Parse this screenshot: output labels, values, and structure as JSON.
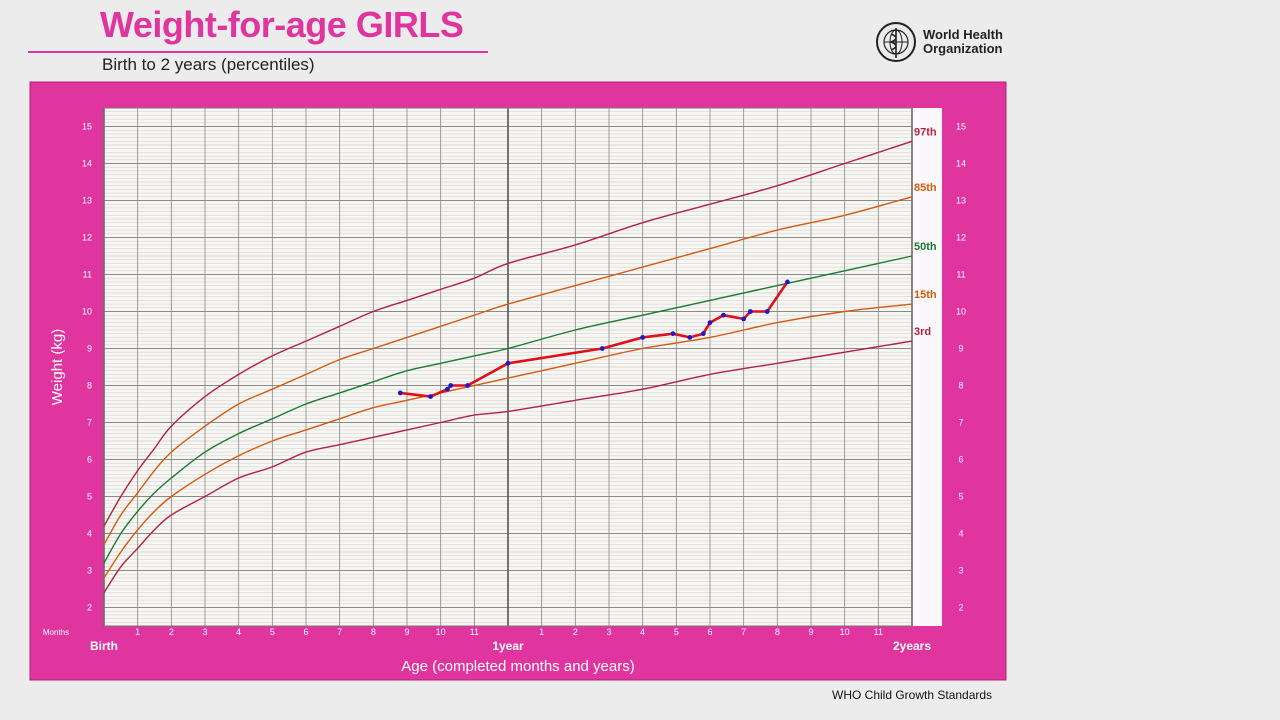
{
  "header": {
    "title": "Weight-for-age GIRLS",
    "subtitle": "Birth to 2 years (percentiles)",
    "org_name": "World Health Organization",
    "footer": "WHO Child Growth Standards"
  },
  "colors": {
    "brand_pink": "#e0349e",
    "grid_bg": "#f8f6f2",
    "p97": "#b3213f",
    "p85": "#d45a10",
    "p50": "#1a7a33",
    "p15": "#d45a10",
    "p3": "#b3213f",
    "child_line": "#e0101a",
    "child_point": "#1a1acc"
  },
  "chart_data": {
    "type": "line",
    "title": "Weight-for-age GIRLS",
    "subtitle": "Birth to 2 years (percentiles)",
    "xlabel": "Age (completed months and years)",
    "ylabel": "Weight (kg)",
    "x_unit_label": "Months",
    "xlim": [
      0,
      24
    ],
    "ylim": [
      1.5,
      15.5
    ],
    "grid": true,
    "x_ticks": [
      {
        "x": 0,
        "label": ""
      },
      {
        "x": 1,
        "label": "1"
      },
      {
        "x": 2,
        "label": "2"
      },
      {
        "x": 3,
        "label": "3"
      },
      {
        "x": 4,
        "label": "4"
      },
      {
        "x": 5,
        "label": "5"
      },
      {
        "x": 6,
        "label": "6"
      },
      {
        "x": 7,
        "label": "7"
      },
      {
        "x": 8,
        "label": "8"
      },
      {
        "x": 9,
        "label": "9"
      },
      {
        "x": 10,
        "label": "10"
      },
      {
        "x": 11,
        "label": "11"
      },
      {
        "x": 12,
        "label": ""
      },
      {
        "x": 13,
        "label": "1"
      },
      {
        "x": 14,
        "label": "2"
      },
      {
        "x": 15,
        "label": "3"
      },
      {
        "x": 16,
        "label": "4"
      },
      {
        "x": 17,
        "label": "5"
      },
      {
        "x": 18,
        "label": "6"
      },
      {
        "x": 19,
        "label": "7"
      },
      {
        "x": 20,
        "label": "8"
      },
      {
        "x": 21,
        "label": "9"
      },
      {
        "x": 22,
        "label": "10"
      },
      {
        "x": 23,
        "label": "11"
      },
      {
        "x": 24,
        "label": ""
      }
    ],
    "x_major_labels": [
      {
        "x": 0,
        "label": "Birth"
      },
      {
        "x": 12,
        "label": "1year"
      },
      {
        "x": 24,
        "label": "2years"
      }
    ],
    "y_ticks": [
      2,
      3,
      4,
      5,
      6,
      7,
      8,
      9,
      10,
      11,
      12,
      13,
      14,
      15
    ],
    "x": [
      0,
      0.5,
      1,
      1.5,
      2,
      3,
      4,
      5,
      6,
      7,
      8,
      9,
      10,
      11,
      12,
      14,
      16,
      18,
      20,
      22,
      24
    ],
    "series": [
      {
        "name": "97th",
        "color": "#b3213f",
        "values": [
          4.2,
          5.0,
          5.7,
          6.3,
          6.9,
          7.7,
          8.3,
          8.8,
          9.2,
          9.6,
          10.0,
          10.3,
          10.6,
          10.9,
          11.3,
          11.8,
          12.4,
          12.9,
          13.4,
          14.0,
          14.6
        ]
      },
      {
        "name": "85th",
        "color": "#d45a10",
        "values": [
          3.7,
          4.5,
          5.1,
          5.7,
          6.2,
          6.9,
          7.5,
          7.9,
          8.3,
          8.7,
          9.0,
          9.3,
          9.6,
          9.9,
          10.2,
          10.7,
          11.2,
          11.7,
          12.2,
          12.6,
          13.1
        ]
      },
      {
        "name": "50th",
        "color": "#1a7a33",
        "values": [
          3.2,
          4.0,
          4.6,
          5.1,
          5.5,
          6.2,
          6.7,
          7.1,
          7.5,
          7.8,
          8.1,
          8.4,
          8.6,
          8.8,
          9.0,
          9.5,
          9.9,
          10.3,
          10.7,
          11.1,
          11.5
        ]
      },
      {
        "name": "15th",
        "color": "#d45a10",
        "values": [
          2.8,
          3.5,
          4.1,
          4.6,
          5.0,
          5.6,
          6.1,
          6.5,
          6.8,
          7.1,
          7.4,
          7.6,
          7.8,
          8.0,
          8.2,
          8.6,
          9.0,
          9.3,
          9.7,
          10.0,
          10.2
        ]
      },
      {
        "name": "3rd",
        "color": "#b3213f",
        "values": [
          2.4,
          3.1,
          3.6,
          4.1,
          4.5,
          5.0,
          5.5,
          5.8,
          6.2,
          6.4,
          6.6,
          6.8,
          7.0,
          7.2,
          7.3,
          7.6,
          7.9,
          8.3,
          8.6,
          8.9,
          9.2
        ]
      }
    ],
    "child": {
      "x": [
        8.8,
        9.7,
        10.2,
        10.3,
        10.8,
        12.0,
        14.8,
        16.0,
        16.9,
        17.4,
        17.8,
        18.0,
        18.4,
        19.0,
        19.2,
        19.7,
        20.3
      ],
      "y": [
        7.8,
        7.7,
        7.9,
        8.0,
        8.0,
        8.6,
        9.0,
        9.3,
        9.4,
        9.3,
        9.4,
        9.7,
        9.9,
        9.8,
        10.0,
        10.0,
        10.8
      ]
    }
  }
}
